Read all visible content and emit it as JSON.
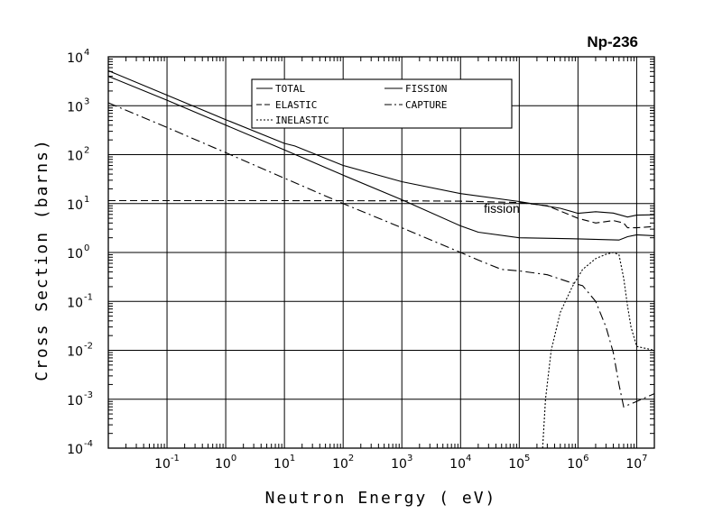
{
  "chart_data": {
    "type": "line",
    "title": "Np-236",
    "xlabel": "Neutron Energy ( eV)",
    "ylabel": "Cross Section (barns)",
    "x_scale": "log",
    "y_scale": "log",
    "xlim": [
      0.01,
      20000000
    ],
    "ylim": [
      0.0001,
      10000
    ],
    "x_ticks": [
      {
        "base": "10",
        "exp": "-1"
      },
      {
        "base": "10",
        "exp": "0"
      },
      {
        "base": "10",
        "exp": "1"
      },
      {
        "base": "10",
        "exp": "2"
      },
      {
        "base": "10",
        "exp": "3"
      },
      {
        "base": "10",
        "exp": "4"
      },
      {
        "base": "10",
        "exp": "5"
      },
      {
        "base": "10",
        "exp": "6"
      },
      {
        "base": "10",
        "exp": "7"
      }
    ],
    "y_ticks": [
      {
        "base": "10",
        "exp": "-4"
      },
      {
        "base": "10",
        "exp": "-3"
      },
      {
        "base": "10",
        "exp": "-2"
      },
      {
        "base": "10",
        "exp": "-1"
      },
      {
        "base": "10",
        "exp": "0"
      },
      {
        "base": "10",
        "exp": "1"
      },
      {
        "base": "10",
        "exp": "2"
      },
      {
        "base": "10",
        "exp": "3"
      },
      {
        "base": "10",
        "exp": "4"
      }
    ],
    "grid": true,
    "legend_position": "top-center",
    "series": [
      {
        "name": "TOTAL",
        "style": "solid",
        "points": [
          [
            0.01,
            5200
          ],
          [
            0.1,
            1650
          ],
          [
            1,
            520
          ],
          [
            10,
            170
          ],
          [
            15,
            150
          ],
          [
            100,
            60
          ],
          [
            1000,
            28
          ],
          [
            10000,
            16
          ],
          [
            100000,
            11
          ],
          [
            500000,
            8
          ],
          [
            1000000,
            6.3
          ],
          [
            2000000,
            6.8
          ],
          [
            4000000,
            6.4
          ],
          [
            7000000,
            5.3
          ],
          [
            10000000,
            5.8
          ],
          [
            20000000,
            5.9
          ]
        ]
      },
      {
        "name": "ELASTIC",
        "style": "dashed",
        "points": [
          [
            0.01,
            11.5
          ],
          [
            10,
            11.5
          ],
          [
            1000,
            11.4
          ],
          [
            10000,
            11.2
          ],
          [
            100000,
            10.5
          ],
          [
            300000,
            9
          ],
          [
            1000000,
            5
          ],
          [
            2000000,
            4
          ],
          [
            4000000,
            4.5
          ],
          [
            6000000,
            4
          ],
          [
            7000000,
            3.2
          ],
          [
            10000000,
            3.2
          ],
          [
            20000000,
            3.4
          ]
        ]
      },
      {
        "name": "INELASTIC",
        "style": "dotted",
        "points": [
          [
            250000,
            0.0001
          ],
          [
            280000,
            0.001
          ],
          [
            350000,
            0.01
          ],
          [
            500000,
            0.06
          ],
          [
            800000,
            0.2
          ],
          [
            1200000,
            0.45
          ],
          [
            2000000,
            0.75
          ],
          [
            3000000,
            0.92
          ],
          [
            4000000,
            1.0
          ],
          [
            5000000,
            0.9
          ],
          [
            6000000,
            0.3
          ],
          [
            7000000,
            0.08
          ],
          [
            8000000,
            0.03
          ],
          [
            10000000,
            0.012
          ],
          [
            20000000,
            0.01
          ]
        ]
      },
      {
        "name": "FISSION",
        "style": "solid",
        "points": [
          [
            0.01,
            4000
          ],
          [
            0.1,
            1300
          ],
          [
            1,
            400
          ],
          [
            10,
            125
          ],
          [
            100,
            38
          ],
          [
            1000,
            12
          ],
          [
            10000,
            3.5
          ],
          [
            20000,
            2.6
          ],
          [
            100000,
            2.0
          ],
          [
            1000000,
            1.9
          ],
          [
            5000000,
            1.8
          ],
          [
            7000000,
            2.1
          ],
          [
            10000000,
            2.3
          ],
          [
            20000000,
            2.2
          ]
        ]
      },
      {
        "name": "CAPTURE",
        "style": "dashdot",
        "points": [
          [
            0.01,
            1150
          ],
          [
            0.1,
            360
          ],
          [
            1,
            110
          ],
          [
            10,
            33
          ],
          [
            100,
            10
          ],
          [
            1000,
            3.2
          ],
          [
            10000,
            1.0
          ],
          [
            20000,
            0.7
          ],
          [
            50000,
            0.45
          ],
          [
            100000,
            0.42
          ],
          [
            300000,
            0.35
          ],
          [
            700000,
            0.25
          ],
          [
            1200000,
            0.21
          ],
          [
            2000000,
            0.1
          ],
          [
            3000000,
            0.03
          ],
          [
            4000000,
            0.009
          ],
          [
            5000000,
            0.002
          ],
          [
            6000000,
            0.0007
          ],
          [
            10000000,
            0.0009
          ],
          [
            20000000,
            0.0013
          ]
        ]
      }
    ],
    "annotations": [
      {
        "text": "fission",
        "x": 25000,
        "y": 6.5
      }
    ]
  }
}
